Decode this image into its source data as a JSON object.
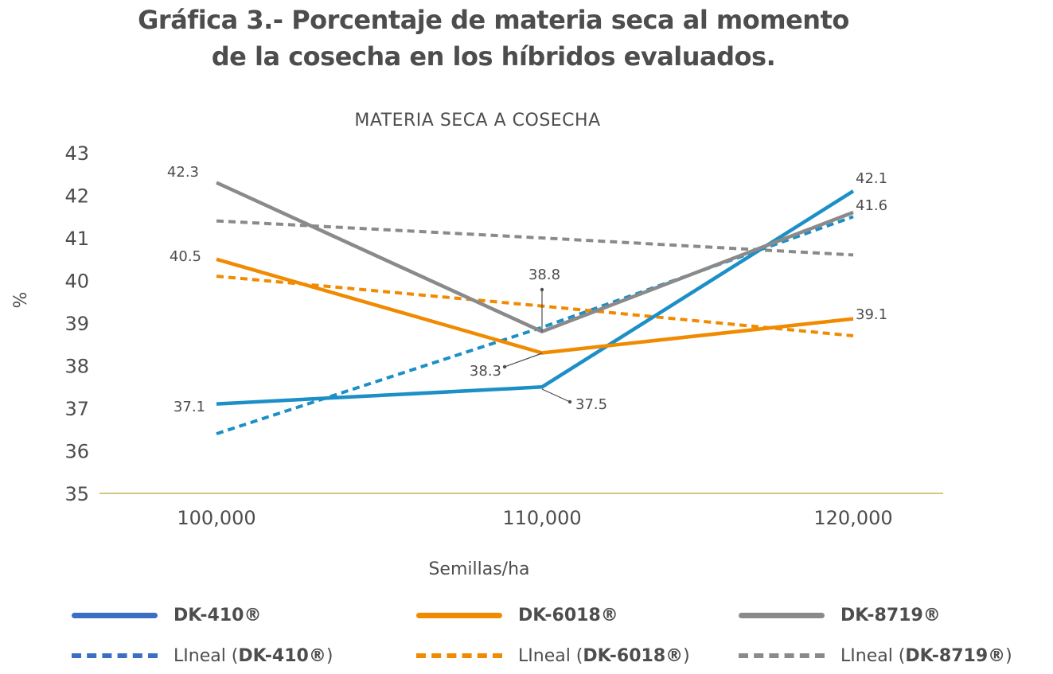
{
  "title_line1": "Gráfica 3.- Porcentaje de materia seca al momento",
  "title_line2": "de la cosecha en los híbridos evaluados.",
  "chart_data": {
    "type": "line",
    "title": "MATERIA SECA A COSECHA",
    "xlabel": "Semillas/ha",
    "ylabel": "%",
    "categories": [
      "100,000",
      "110,000",
      "120,000"
    ],
    "ylim": [
      35,
      43
    ],
    "yticks": [
      "35",
      "36",
      "37",
      "38",
      "39",
      "40",
      "41",
      "42",
      "43"
    ],
    "grid": false,
    "legend_position": "bottom",
    "series": [
      {
        "name": "DK-410®",
        "values": [
          37.1,
          37.5,
          42.1
        ],
        "color": "#1b8fc6",
        "style": "solid",
        "labels": [
          "37.1",
          "37.5",
          "42.1"
        ]
      },
      {
        "name": "DK-6018®",
        "values": [
          40.5,
          38.3,
          39.1
        ],
        "color": "#f08a00",
        "style": "solid",
        "labels": [
          "40.5",
          "38.3",
          "39.1"
        ]
      },
      {
        "name": "DK-8719®",
        "values": [
          42.3,
          38.8,
          41.6
        ],
        "color": "#8a8a8a",
        "style": "solid",
        "labels": [
          "42.3",
          "38.8",
          "41.6"
        ]
      },
      {
        "name": "LIneal (DK-410®)",
        "values": [
          36.4,
          38.9,
          41.5
        ],
        "color": "#1b8fc6",
        "style": "dashed"
      },
      {
        "name": "LIneal (DK-6018®)",
        "values": [
          40.1,
          39.4,
          38.7
        ],
        "color": "#f08a00",
        "style": "dashed"
      },
      {
        "name": "LIneal (DK-8719®)",
        "values": [
          41.4,
          41.0,
          40.6
        ],
        "color": "#8a8a8a",
        "style": "dashed"
      }
    ],
    "legend": [
      {
        "prefix": "",
        "bold": "DK-410®",
        "suffix": "",
        "swatch_color": "#3b6fc4",
        "style": "solid"
      },
      {
        "prefix": "",
        "bold": "DK-6018®",
        "suffix": "",
        "swatch_color": "#f08a00",
        "style": "solid"
      },
      {
        "prefix": "",
        "bold": "DK-8719®",
        "suffix": "",
        "swatch_color": "#8a8a8a",
        "style": "solid"
      },
      {
        "prefix": "LIneal (",
        "bold": "DK-410®",
        "suffix": ")",
        "swatch_color": "#3b6fc4",
        "style": "dashed"
      },
      {
        "prefix": "LIneal (",
        "bold": "DK-6018®",
        "suffix": ")",
        "swatch_color": "#f08a00",
        "style": "dashed"
      },
      {
        "prefix": "LIneal (",
        "bold": "DK-8719®",
        "suffix": ")",
        "swatch_color": "#8a8a8a",
        "style": "dashed"
      }
    ],
    "axis_color": "#c8b45a",
    "text_color": "#4d4d4d"
  }
}
